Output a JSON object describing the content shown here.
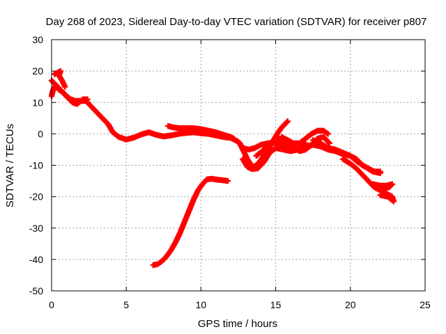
{
  "chart_data": {
    "type": "scatter",
    "title": "Day 268 of 2023, Sidereal Day-to-day VTEC variation (SDTVAR) for receiver p807",
    "xlabel": "GPS time / hours",
    "ylabel": "SDTVAR / TECUs",
    "xlim": [
      0,
      25
    ],
    "ylim": [
      -50,
      30
    ],
    "x_ticks": [
      0,
      5,
      10,
      15,
      20,
      25
    ],
    "y_ticks": [
      -50,
      -40,
      -30,
      -20,
      -10,
      0,
      10,
      20,
      30
    ],
    "x_tick_labels": [
      "0",
      "5",
      "10",
      "15",
      "20",
      "25"
    ],
    "y_tick_labels": [
      "-50",
      "-40",
      "-30",
      "-20",
      "-10",
      "0",
      "10",
      "20",
      "30"
    ],
    "grid": true,
    "marker": "plus",
    "color": "#ff0000",
    "series": [
      {
        "name": "main-track",
        "points": [
          [
            0,
            17
          ],
          [
            0.2,
            16
          ],
          [
            0.4,
            15
          ],
          [
            0.6,
            14
          ],
          [
            0.8,
            13
          ],
          [
            1,
            12
          ],
          [
            1.3,
            11
          ],
          [
            1.6,
            10.5
          ],
          [
            2,
            10.5
          ],
          [
            2.3,
            10.5
          ],
          [
            2.6,
            9
          ],
          [
            3,
            7
          ],
          [
            3.4,
            5
          ],
          [
            3.8,
            3
          ],
          [
            4.1,
            0.5
          ],
          [
            4.5,
            -1
          ],
          [
            5,
            -1.8
          ],
          [
            5.5,
            -1.2
          ],
          [
            6,
            -0.2
          ],
          [
            6.5,
            0.5
          ],
          [
            7,
            -0.3
          ],
          [
            7.5,
            -0.8
          ],
          [
            8,
            -0.5
          ],
          [
            8.5,
            0
          ],
          [
            9,
            0.3
          ],
          [
            9.5,
            0.5
          ],
          [
            10,
            0.2
          ],
          [
            10.5,
            0
          ],
          [
            11,
            -0.5
          ],
          [
            11.5,
            -1
          ],
          [
            12,
            -1.3
          ],
          [
            12.5,
            -2.5
          ],
          [
            12.8,
            -4.5
          ],
          [
            13.2,
            -5
          ],
          [
            13.6,
            -4.5
          ],
          [
            14,
            -3.5
          ],
          [
            14.5,
            -3
          ],
          [
            15,
            -2.8
          ],
          [
            15.5,
            -3.5
          ],
          [
            16,
            -4.5
          ],
          [
            16.5,
            -5
          ],
          [
            17,
            -4
          ],
          [
            17.5,
            -3.5
          ],
          [
            18,
            -4
          ],
          [
            18.5,
            -5
          ],
          [
            19,
            -5.5
          ],
          [
            19.5,
            -6.5
          ],
          [
            20,
            -7
          ],
          [
            20.4,
            -8
          ],
          [
            20.8,
            -10
          ],
          [
            21.2,
            -11
          ],
          [
            21.6,
            -12
          ],
          [
            22,
            -12
          ]
        ]
      },
      {
        "name": "upper-wing-early",
        "points": [
          [
            0.2,
            19
          ],
          [
            0.4,
            19.5
          ],
          [
            0.6,
            20
          ],
          [
            0.5,
            18.5
          ],
          [
            0.7,
            17
          ],
          [
            0.9,
            15
          ]
        ]
      },
      {
        "name": "early-scatter",
        "points": [
          [
            0,
            12
          ],
          [
            0.1,
            14
          ],
          [
            0.3,
            15.5
          ],
          [
            0.5,
            14
          ],
          [
            0.7,
            13.5
          ],
          [
            0.9,
            12.5
          ],
          [
            1.1,
            11.5
          ],
          [
            1.4,
            10
          ],
          [
            1.7,
            9.5
          ],
          [
            2.1,
            11
          ],
          [
            2.4,
            11
          ]
        ]
      },
      {
        "name": "upper-band",
        "points": [
          [
            7.8,
            2.5
          ],
          [
            8.2,
            2
          ],
          [
            8.6,
            1.8
          ],
          [
            9,
            1.8
          ],
          [
            9.5,
            1.8
          ],
          [
            10,
            1.5
          ],
          [
            10.5,
            1
          ],
          [
            11,
            0.5
          ],
          [
            11.5,
            -0.3
          ],
          [
            12,
            -1
          ],
          [
            12.2,
            -1.5
          ]
        ]
      },
      {
        "name": "dip-track-a",
        "points": [
          [
            12.6,
            -3
          ],
          [
            12.9,
            -6
          ],
          [
            13.1,
            -8
          ],
          [
            13.3,
            -9.5
          ],
          [
            13.5,
            -10.5
          ],
          [
            13.7,
            -10
          ],
          [
            13.9,
            -9
          ],
          [
            14.2,
            -7
          ],
          [
            14.5,
            -5
          ],
          [
            14.8,
            -2.5
          ],
          [
            15.1,
            0
          ],
          [
            15.4,
            2
          ],
          [
            15.8,
            4
          ]
        ]
      },
      {
        "name": "dip-track-b",
        "points": [
          [
            12.8,
            -8
          ],
          [
            13.1,
            -10.5
          ],
          [
            13.4,
            -11.2
          ],
          [
            13.8,
            -11
          ],
          [
            14.2,
            -9
          ],
          [
            14.6,
            -6
          ],
          [
            15,
            -4.5
          ],
          [
            15.5,
            -5
          ],
          [
            16,
            -5.5
          ],
          [
            16.5,
            -5
          ],
          [
            17,
            -3
          ]
        ]
      },
      {
        "name": "cross-track",
        "points": [
          [
            13.7,
            -7
          ],
          [
            14.1,
            -5.5
          ],
          [
            14.5,
            -3.5
          ],
          [
            14.9,
            -2
          ],
          [
            15.3,
            -1.5
          ],
          [
            15.8,
            -2.5
          ],
          [
            16.2,
            -4
          ],
          [
            16.6,
            -5.5
          ],
          [
            17,
            -5
          ],
          [
            17.4,
            -3.5
          ],
          [
            17.8,
            -1.5
          ],
          [
            18.2,
            -1
          ],
          [
            18.6,
            -3
          ]
        ]
      },
      {
        "name": "upper-arc",
        "points": [
          [
            15.4,
            -1
          ],
          [
            15.8,
            -2
          ],
          [
            16.2,
            -3
          ],
          [
            16.6,
            -3
          ],
          [
            17,
            -1.5
          ],
          [
            17.4,
            0
          ],
          [
            17.8,
            1
          ],
          [
            18.2,
            1
          ],
          [
            18.5,
            0
          ]
        ]
      },
      {
        "name": "late-band",
        "points": [
          [
            17.5,
            -2
          ],
          [
            18,
            -3
          ],
          [
            18.5,
            -4.5
          ],
          [
            19,
            -5
          ],
          [
            19.5,
            -6
          ],
          [
            20,
            -7
          ],
          [
            20.5,
            -9
          ],
          [
            21,
            -10.5
          ],
          [
            21.5,
            -12
          ],
          [
            22,
            -12.5
          ]
        ]
      },
      {
        "name": "late-lower",
        "points": [
          [
            19.5,
            -8
          ],
          [
            20,
            -9.5
          ],
          [
            20.4,
            -11
          ],
          [
            20.8,
            -13
          ],
          [
            21.2,
            -15
          ],
          [
            21.6,
            -17
          ],
          [
            22,
            -18
          ],
          [
            22.4,
            -19
          ],
          [
            22.8,
            -20
          ],
          [
            22.9,
            -21.5
          ],
          [
            22.5,
            -20
          ],
          [
            22,
            -19.5
          ]
        ]
      },
      {
        "name": "late-mid",
        "points": [
          [
            21.5,
            -16
          ],
          [
            22,
            -16.5
          ],
          [
            22.4,
            -16.5
          ],
          [
            22.8,
            -16
          ],
          [
            22.6,
            -17
          ],
          [
            22.2,
            -17.5
          ]
        ]
      },
      {
        "name": "low-arc",
        "points": [
          [
            6.8,
            -41.8
          ],
          [
            7.1,
            -41.5
          ],
          [
            7.4,
            -40.5
          ],
          [
            7.7,
            -39
          ],
          [
            8,
            -37
          ],
          [
            8.3,
            -34.5
          ],
          [
            8.6,
            -31.5
          ],
          [
            8.9,
            -28
          ],
          [
            9.2,
            -24.5
          ],
          [
            9.5,
            -21
          ],
          [
            9.8,
            -18
          ],
          [
            10.1,
            -16
          ],
          [
            10.4,
            -14.5
          ],
          [
            10.7,
            -14.3
          ],
          [
            11.1,
            -14.6
          ],
          [
            11.5,
            -14.8
          ],
          [
            11.8,
            -15
          ]
        ]
      }
    ]
  }
}
